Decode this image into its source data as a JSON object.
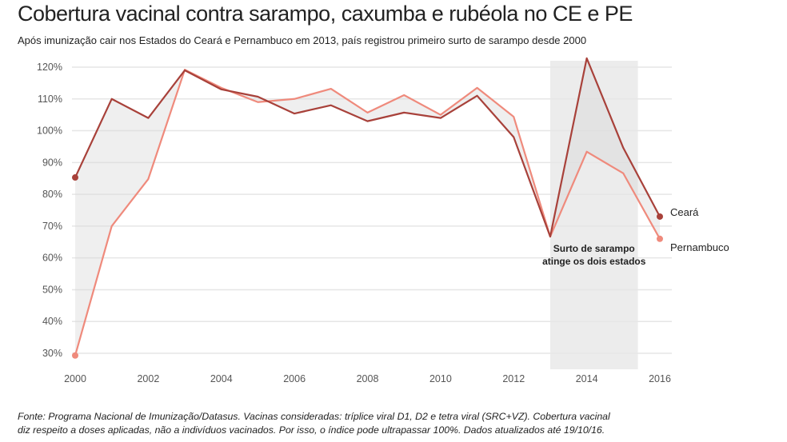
{
  "chart_data": {
    "type": "line",
    "title": "Cobertura vacinal contra sarampo, caxumba e rubéola no CE e PE",
    "subtitle": "Após imunização cair nos Estados do Ceará e Pernambuco em 2013, país registrou primeiro surto de sarampo desde 2000",
    "x": [
      2000,
      2001,
      2002,
      2003,
      2004,
      2005,
      2006,
      2007,
      2008,
      2009,
      2010,
      2011,
      2012,
      2013,
      2014,
      2015,
      2016
    ],
    "series": [
      {
        "name": "Ceará",
        "color": "#a8413a",
        "values": [
          85.3,
          110,
          104,
          119,
          113,
          110.7,
          105.4,
          108,
          103,
          105.7,
          104,
          111,
          98,
          66.7,
          122.8,
          94.6,
          73
        ]
      },
      {
        "name": "Pernambuco",
        "color": "#ef8a7c",
        "values": [
          29.3,
          70,
          84.8,
          119.2,
          113.5,
          109,
          110,
          113.2,
          105.7,
          111.2,
          105,
          113.5,
          104.4,
          66.7,
          93.4,
          86.6,
          66
        ]
      }
    ],
    "xlim": [
      2000,
      2016
    ],
    "ylim": [
      30,
      120
    ],
    "x_ticks": [
      "2000",
      "2002",
      "2004",
      "2006",
      "2008",
      "2010",
      "2012",
      "2014",
      "2016"
    ],
    "y_ticks": [
      "30%",
      "40%",
      "50%",
      "60%",
      "70%",
      "80%",
      "90%",
      "100%",
      "110%",
      "120%"
    ],
    "grid": true,
    "legend": "end-of-line labels",
    "highlight": {
      "from": 2013,
      "to": 2015.4,
      "annotation": [
        "Surto de sarampo",
        "atinge os dois estados"
      ]
    },
    "footer": [
      "Fonte: Programa Nacional de Imunização/Datasus. Vacinas consideradas: tríplice viral D1, D2 e tetra viral (SRC+VZ). Cobertura vacinal",
      "diz respeito a doses aplicadas, não a indivíduos vacinados. Por isso, o índice pode ultrapassar 100%. Dados atualizados até 19/10/16."
    ]
  }
}
